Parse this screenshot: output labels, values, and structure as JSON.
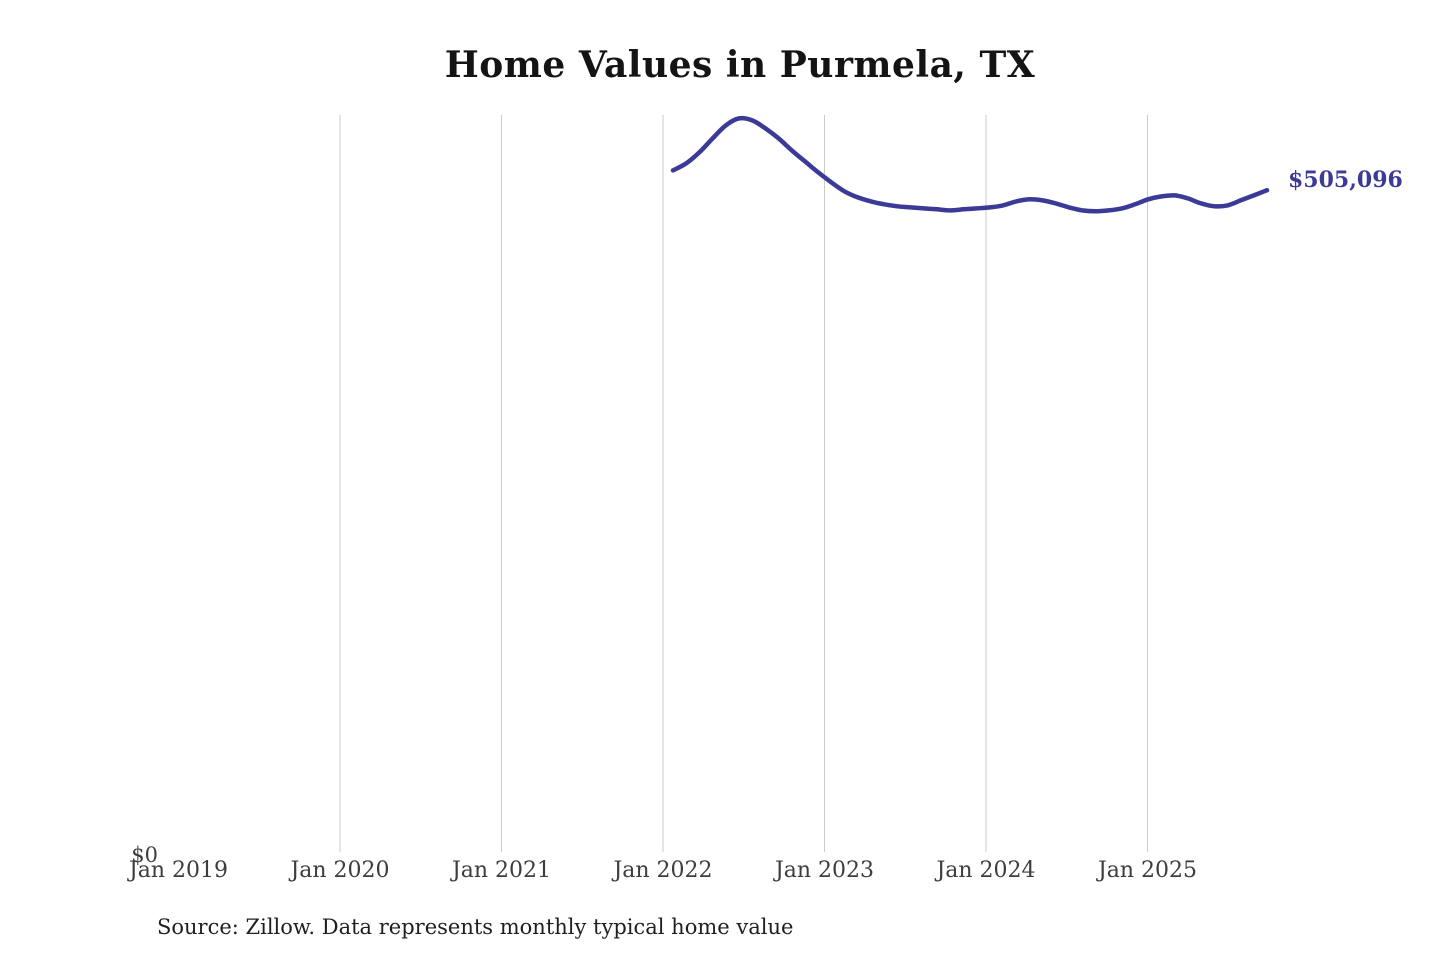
{
  "title": "Home Values in Purmela, TX",
  "source_note": "Source: Zillow. Data represents monthly typical home value",
  "colors": {
    "line": "#3b3a97",
    "end_label": "#3b3a97",
    "gridline": "#cbcbcb",
    "axis_text": "#3d3d3d",
    "title_text": "#141414",
    "background": "#ffffff"
  },
  "chart_data": {
    "type": "line",
    "title": "Home Values in Purmela, TX",
    "xlabel": "",
    "ylabel": "",
    "ylabel_zero": "$0",
    "ylim": [
      0,
      560000
    ],
    "grid": "vertical",
    "legend": "none",
    "end_label": "$505,096",
    "end_value": 505096,
    "x_ticks": [
      "Jan 2019",
      "Jan 2020",
      "Jan 2021",
      "Jan 2022",
      "Jan 2023",
      "Jan 2024",
      "Jan 2025"
    ],
    "gridline_ticks": [
      "Jan 2020",
      "Jan 2021",
      "Jan 2022",
      "Jan 2023",
      "Jan 2024",
      "Jan 2025"
    ],
    "series": [
      {
        "name": "Monthly typical home value",
        "months": [
          "Jan 2022",
          "Feb 2022",
          "Mar 2022",
          "Apr 2022",
          "May 2022",
          "Jun 2022",
          "Jul 2022",
          "Aug 2022",
          "Sep 2022",
          "Oct 2022",
          "Nov 2022",
          "Dec 2022",
          "Jan 2023",
          "Feb 2023",
          "Mar 2023",
          "Apr 2023",
          "May 2023",
          "Jun 2023",
          "Jul 2023",
          "Aug 2023",
          "Sep 2023",
          "Oct 2023",
          "Nov 2023",
          "Dec 2023",
          "Jan 2024",
          "Feb 2024",
          "Mar 2024",
          "Apr 2024",
          "May 2024",
          "Jun 2024",
          "Jul 2024",
          "Aug 2024",
          "Sep 2024",
          "Oct 2024",
          "Nov 2024",
          "Dec 2024",
          "Jan 2025",
          "Feb 2025",
          "Mar 2025",
          "Apr 2025",
          "May 2025",
          "Jun 2025",
          "Jul 2025",
          "Aug 2025",
          "Sep 2025",
          "Oct 2025"
        ],
        "values": [
          520200,
          525500,
          533900,
          544500,
          554400,
          559700,
          558200,
          552100,
          544500,
          535400,
          527000,
          518700,
          511100,
          504200,
          499700,
          496600,
          494400,
          492900,
          492100,
          491300,
          490600,
          489800,
          490600,
          491300,
          492100,
          493600,
          496600,
          498200,
          497400,
          495100,
          492100,
          489800,
          489100,
          489800,
          491300,
          494400,
          498200,
          500400,
          501200,
          498900,
          495100,
          492900,
          493600,
          497400,
          501200,
          505096
        ]
      }
    ]
  }
}
